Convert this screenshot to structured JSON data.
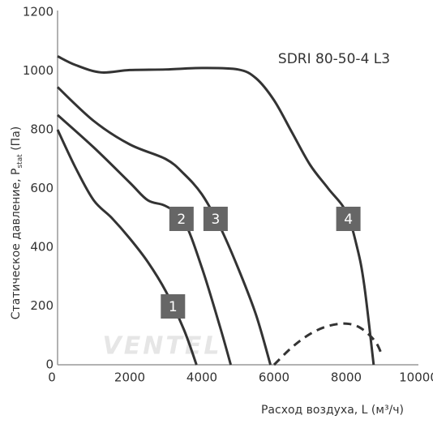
{
  "chart_data": {
    "type": "line",
    "title": "SDRI 80-50-4 L3",
    "x_label": "Расход воздуха, L (м³/ч)",
    "y_label_parts": [
      "Статическое давление, P",
      "stat",
      " (Па)"
    ],
    "watermark": "VENTEL",
    "xlim": [
      0,
      10000
    ],
    "xticks": [
      0,
      2000,
      4000,
      6000,
      8000,
      10000
    ],
    "ylim": [
      0,
      1200
    ],
    "yticks": [
      0,
      200,
      400,
      600,
      800,
      1000,
      1200
    ],
    "grid": false,
    "series": [
      {
        "name": "1",
        "color": "#333333",
        "dashed": false,
        "x": [
          0,
          500,
          1000,
          1500,
          2000,
          2500,
          3000,
          3500,
          3850
        ],
        "values": [
          800,
          670,
          560,
          500,
          430,
          350,
          250,
          120,
          0
        ]
      },
      {
        "name": "2",
        "color": "#333333",
        "dashed": false,
        "x": [
          0,
          1000,
          2000,
          2500,
          3000,
          3500,
          4000,
          4500,
          4800
        ],
        "values": [
          850,
          740,
          620,
          560,
          540,
          490,
          330,
          130,
          0
        ]
      },
      {
        "name": "3",
        "color": "#333333",
        "dashed": false,
        "x": [
          0,
          1000,
          2000,
          3000,
          3500,
          4000,
          4500,
          5000,
          5500,
          5900
        ],
        "values": [
          945,
          830,
          750,
          700,
          650,
          580,
          470,
          330,
          170,
          0
        ]
      },
      {
        "name": "4",
        "color": "#333333",
        "dashed": false,
        "x": [
          0,
          500,
          1200,
          2000,
          3000,
          4000,
          5000,
          5500,
          6000,
          6500,
          7000,
          7500,
          8000,
          8300,
          8500,
          8760
        ],
        "values": [
          1050,
          1020,
          995,
          1003,
          1005,
          1010,
          1005,
          975,
          900,
          790,
          680,
          600,
          520,
          400,
          270,
          0
        ]
      },
      {
        "name": null,
        "color": "#333333",
        "dashed": true,
        "x": [
          6000,
          6500,
          7000,
          7500,
          8000,
          8400,
          8800,
          9000
        ],
        "values": [
          0,
          60,
          105,
          132,
          140,
          125,
          80,
          30
        ]
      }
    ]
  }
}
